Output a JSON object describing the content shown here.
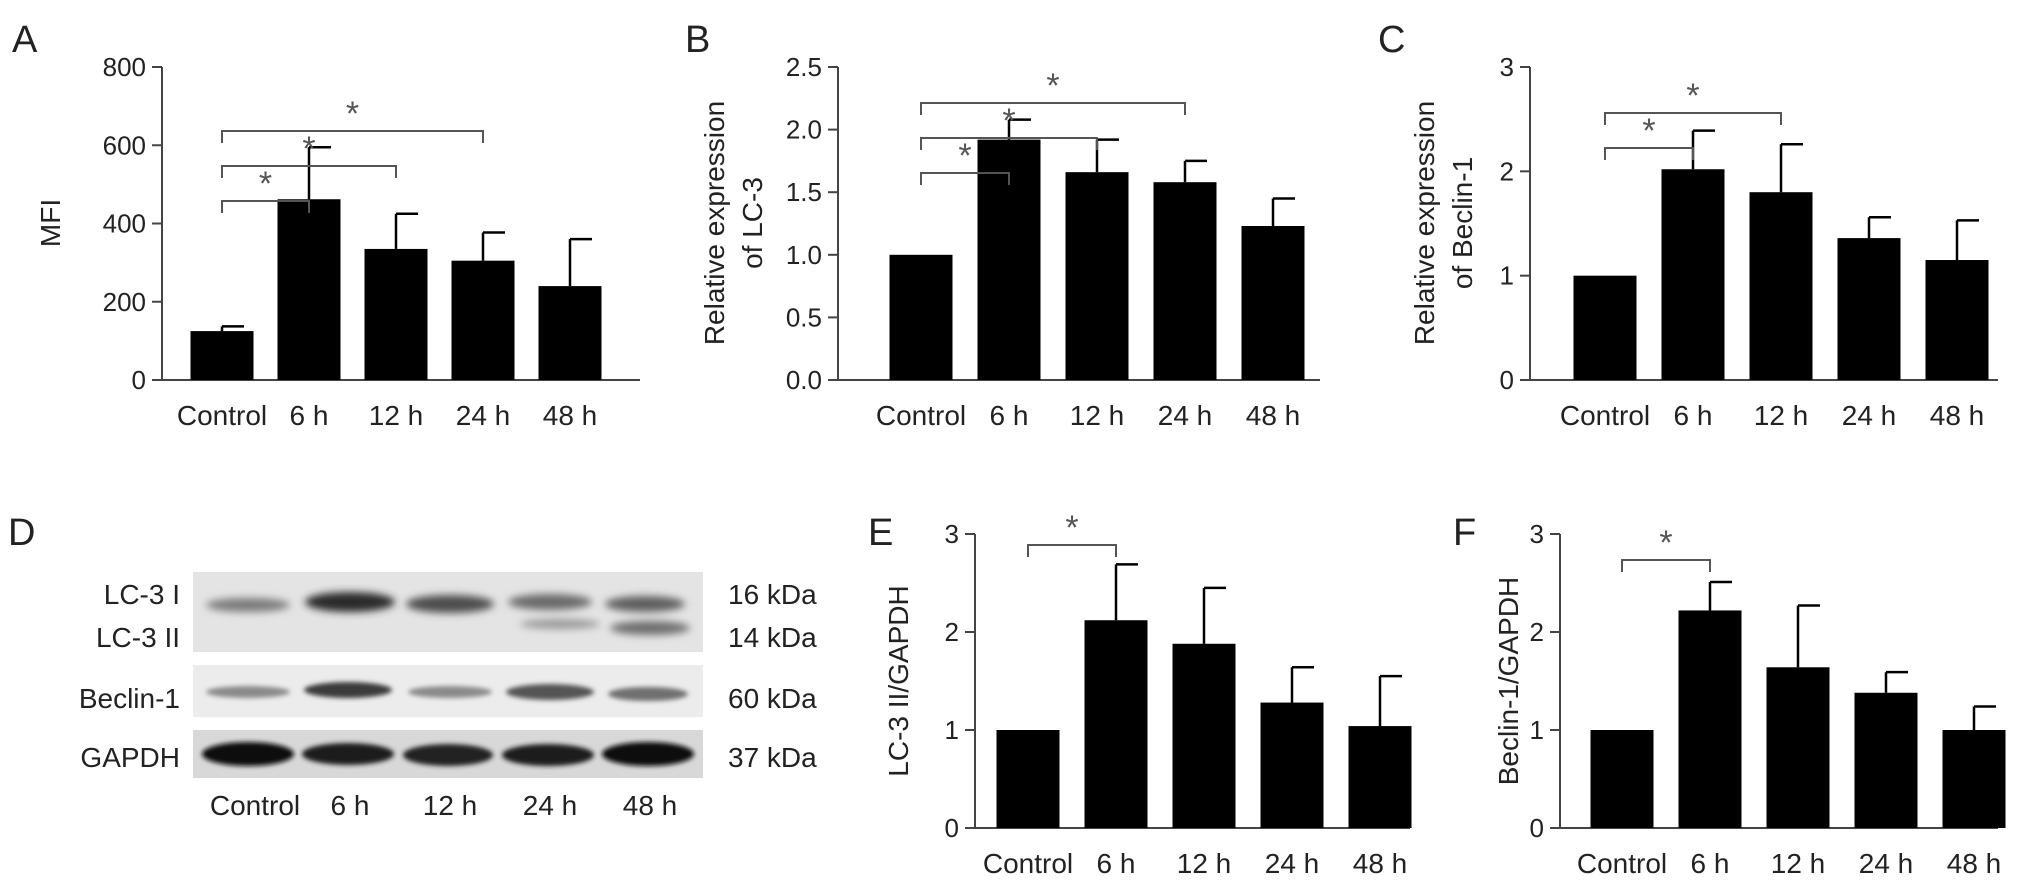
{
  "chart_data": [
    {
      "panel": "A",
      "type": "bar",
      "categories": [
        "Control",
        "6 h",
        "12 h",
        "24 h",
        "48 h"
      ],
      "values": [
        125,
        462,
        335,
        305,
        240
      ],
      "errors": [
        12,
        133,
        90,
        72,
        120
      ],
      "ylabel": "MFI",
      "ylim": [
        0,
        800
      ],
      "yticks": [
        0,
        200,
        400,
        600,
        800
      ],
      "significance": [
        {
          "from": 0,
          "to": 1,
          "label": "*"
        },
        {
          "from": 0,
          "to": 2,
          "label": "*"
        },
        {
          "from": 0,
          "to": 3,
          "label": "*"
        }
      ]
    },
    {
      "panel": "B",
      "type": "bar",
      "categories": [
        "Control",
        "6 h",
        "12 h",
        "24 h",
        "48 h"
      ],
      "values": [
        1.0,
        1.92,
        1.66,
        1.58,
        1.23
      ],
      "errors": [
        0,
        0.16,
        0.26,
        0.17,
        0.22
      ],
      "ylabel": [
        "Relative expression",
        "of LC-3"
      ],
      "ylim": [
        0,
        2.5
      ],
      "yticks": [
        0.0,
        0.5,
        1.0,
        1.5,
        2.0,
        2.5
      ],
      "tick_decimals": 1,
      "significance": [
        {
          "from": 0,
          "to": 1,
          "label": "*"
        },
        {
          "from": 0,
          "to": 2,
          "label": "*"
        },
        {
          "from": 0,
          "to": 3,
          "label": "*"
        }
      ]
    },
    {
      "panel": "C",
      "type": "bar",
      "categories": [
        "Control",
        "6 h",
        "12 h",
        "24 h",
        "48 h"
      ],
      "values": [
        1.0,
        2.02,
        1.8,
        1.36,
        1.15
      ],
      "errors": [
        0,
        0.37,
        0.46,
        0.2,
        0.38
      ],
      "ylabel": [
        "Relative expression",
        "of Beclin-1"
      ],
      "ylim": [
        0,
        3
      ],
      "yticks": [
        0,
        1,
        2,
        3
      ],
      "significance": [
        {
          "from": 0,
          "to": 1,
          "label": "*"
        },
        {
          "from": 0,
          "to": 2,
          "label": "*"
        }
      ]
    },
    {
      "panel": "E",
      "type": "bar",
      "categories": [
        "Control",
        "6 h",
        "12 h",
        "24 h",
        "48 h"
      ],
      "values": [
        1.0,
        2.12,
        1.88,
        1.28,
        1.04
      ],
      "errors": [
        0,
        0.57,
        0.57,
        0.36,
        0.51
      ],
      "ylabel": "LC-3 II/GAPDH",
      "ylim": [
        0,
        3
      ],
      "yticks": [
        0,
        1,
        2,
        3
      ],
      "significance": [
        {
          "from": 0,
          "to": 1,
          "label": "*"
        }
      ]
    },
    {
      "panel": "F",
      "type": "bar",
      "categories": [
        "Control",
        "6 h",
        "12 h",
        "24 h",
        "48 h"
      ],
      "values": [
        1.0,
        2.22,
        1.64,
        1.38,
        1.0
      ],
      "errors": [
        0,
        0.29,
        0.63,
        0.21,
        0.24
      ],
      "ylabel": "Beclin-1/GAPDH",
      "ylim": [
        0,
        3
      ],
      "yticks": [
        0,
        1,
        2,
        3
      ],
      "significance": [
        {
          "from": 0,
          "to": 1,
          "label": "*"
        }
      ]
    }
  ],
  "western_blot": {
    "panel": "D",
    "lanes": [
      "Control",
      "6 h",
      "12 h",
      "24 h",
      "48 h"
    ],
    "rows": [
      {
        "labels": [
          "LC-3 I",
          "LC-3 II"
        ],
        "sizes": [
          "16 kDa",
          "14 kDa"
        ]
      },
      {
        "labels": [
          "Beclin-1"
        ],
        "sizes": [
          "60 kDa"
        ]
      },
      {
        "labels": [
          "GAPDH"
        ],
        "sizes": [
          "37 kDa"
        ]
      }
    ]
  }
}
